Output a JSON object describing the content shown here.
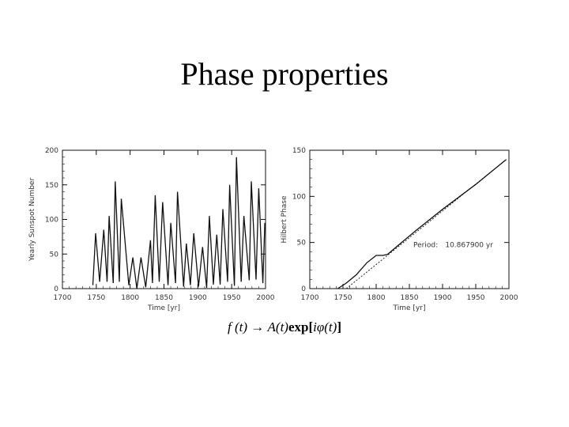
{
  "slide": {
    "title": "Phase properties",
    "formula": {
      "left": "f (t)",
      "arrow": "→",
      "amplitude": "A(t)",
      "exp": "exp",
      "open": "[",
      "phase": "iφ(t)",
      "close": "]"
    }
  },
  "chart_data": [
    {
      "type": "line",
      "title": "",
      "xlabel": "Time [yr]",
      "ylabel": "Yearly Sunspot Number",
      "xlim": [
        1700,
        2000
      ],
      "ylim": [
        0,
        200
      ],
      "xticks": [
        "1700",
        "1750",
        "1800",
        "1850",
        "1900",
        "1950",
        "2000"
      ],
      "yticks": [
        "0",
        "50",
        "100",
        "150",
        "200"
      ],
      "series": [
        {
          "name": "Yearly Sunspot Number",
          "x": [
            1745,
            1749,
            1755,
            1761,
            1766,
            1769,
            1775,
            1778,
            1784,
            1787,
            1798,
            1804,
            1810,
            1816,
            1823,
            1830,
            1833,
            1837,
            1843,
            1848,
            1856,
            1860,
            1867,
            1870,
            1879,
            1883,
            1889,
            1894,
            1901,
            1907,
            1913,
            1917,
            1923,
            1928,
            1933,
            1937,
            1944,
            1947,
            1954,
            1957,
            1964,
            1968,
            1976,
            1979,
            1986,
            1990,
            1996,
            1999
          ],
          "y": [
            5,
            80,
            10,
            85,
            10,
            105,
            8,
            155,
            10,
            130,
            5,
            45,
            0,
            45,
            2,
            70,
            8,
            135,
            10,
            125,
            5,
            95,
            8,
            140,
            3,
            65,
            5,
            80,
            3,
            60,
            1,
            105,
            6,
            78,
            6,
            115,
            10,
            150,
            4,
            190,
            10,
            105,
            12,
            155,
            13,
            145,
            8,
            95
          ]
        }
      ]
    },
    {
      "type": "line",
      "title": "",
      "xlabel": "Time [yr]",
      "ylabel": "Hilbert Phase",
      "xlim": [
        1700,
        2000
      ],
      "ylim": [
        0,
        150
      ],
      "xticks": [
        "1700",
        "1750",
        "1800",
        "1850",
        "1900",
        "1950",
        "2000"
      ],
      "yticks": [
        "0",
        "50",
        "100",
        "150"
      ],
      "annotation": {
        "label": "Period:",
        "value": "10.867900 yr"
      },
      "series": [
        {
          "name": "Hilbert phase",
          "x": [
            1742,
            1755,
            1770,
            1786,
            1800,
            1805,
            1810,
            1817,
            1830,
            1860,
            1900,
            1950,
            1996
          ],
          "y": [
            0,
            6,
            15,
            28,
            36,
            36,
            36,
            37,
            45,
            63,
            86,
            113,
            140
          ]
        },
        {
          "name": "Linear fit",
          "x": [
            1755,
            1996
          ],
          "y": [
            0,
            140
          ]
        }
      ]
    }
  ]
}
